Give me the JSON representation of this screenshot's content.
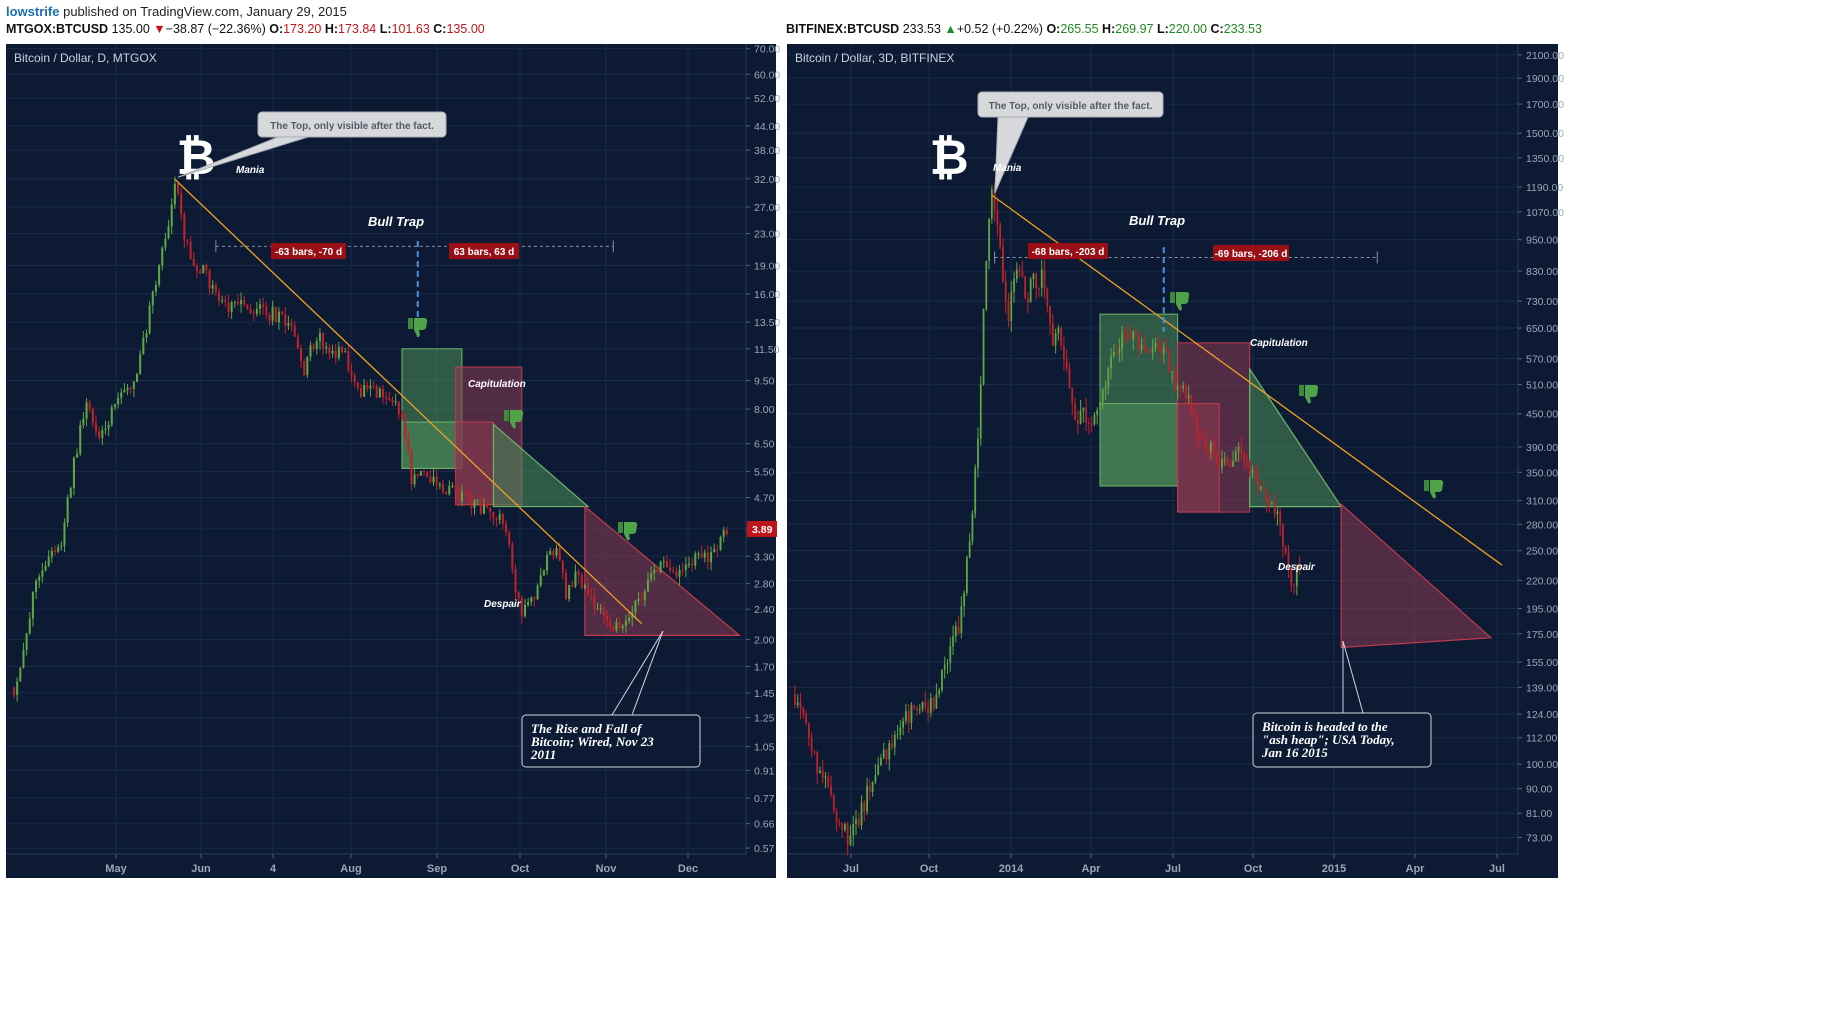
{
  "header": {
    "user": "lowstrife",
    "published_text": "published on TradingView.com, January 29, 2015"
  },
  "quotes": [
    {
      "symbol": "MTGOX:BTCUSD",
      "last": "135.00",
      "arrow": "▼",
      "change": "−38.87 (−22.36%)",
      "open_label": "O:",
      "open": "173.20",
      "high_label": "H:",
      "high": "173.84",
      "low_label": "L:",
      "low": "101.63",
      "close_label": "C:",
      "close": "135.00",
      "direction": "down"
    },
    {
      "symbol": "BITFINEX:BTCUSD",
      "last": "233.53",
      "arrow": "▲",
      "change": "+0.52 (+0.22%)",
      "open_label": "O:",
      "open": "265.55",
      "high_label": "H:",
      "high": "269.97",
      "low_label": "L:",
      "low": "220.00",
      "close_label": "C:",
      "close": "233.53",
      "direction": "up"
    }
  ],
  "colors": {
    "chart_bg": "#0c1a33",
    "grid": "#1a2b48",
    "up_candle": "#5fa645",
    "down_candle": "#c0222a",
    "trendline": "#f0a020",
    "green_zone": "#4f8f59",
    "red_zone": "#8c3a52",
    "label_red": "#9a0f16",
    "axis_text": "#9aa7b8",
    "callout_bg": "#d6d8dc"
  },
  "chart_data": [
    {
      "type": "candlestick",
      "title": "Bitcoin / Dollar, D, MTGOX",
      "x_ticks": [
        "May",
        "Jun",
        "4",
        "Aug",
        "Sep",
        "Oct",
        "Nov",
        "Dec"
      ],
      "y_scale": "log",
      "y_ticks": [
        "70.00",
        "60.00",
        "52.00",
        "44.00",
        "38.00",
        "32.00",
        "27.00",
        "23.00",
        "19.00",
        "16.00",
        "13.50",
        "11.50",
        "9.50",
        "8.00",
        "6.50",
        "5.50",
        "4.70",
        "3.89",
        "3.30",
        "2.80",
        "2.40",
        "2.00",
        "1.70",
        "1.45",
        "1.25",
        "1.05",
        "0.91",
        "0.77",
        "0.66",
        "0.57"
      ],
      "ylim": [
        0.55,
        72
      ],
      "last_price": "3.89",
      "price_path": [
        [
          0,
          1.5
        ],
        [
          3,
          1.8
        ],
        [
          7,
          2.9
        ],
        [
          11,
          3.3
        ],
        [
          15,
          3.6
        ],
        [
          19,
          5.8
        ],
        [
          23,
          8.5
        ],
        [
          27,
          6.5
        ],
        [
          31,
          7.8
        ],
        [
          35,
          8.8
        ],
        [
          39,
          9.8
        ],
        [
          43,
          14.5
        ],
        [
          46,
          19.5
        ],
        [
          49,
          24
        ],
        [
          51,
          31.9
        ],
        [
          53,
          25
        ],
        [
          55,
          21
        ],
        [
          57,
          19
        ],
        [
          60,
          18.5
        ],
        [
          64,
          16
        ],
        [
          68,
          14.5
        ],
        [
          72,
          15
        ],
        [
          77,
          14.5
        ],
        [
          82,
          14.2
        ],
        [
          88,
          13
        ],
        [
          92,
          10.2
        ],
        [
          94,
          11.3
        ],
        [
          97,
          12.2
        ],
        [
          100,
          11.1
        ],
        [
          104,
          11.6
        ],
        [
          107,
          10
        ],
        [
          110,
          9
        ],
        [
          113,
          8.9
        ],
        [
          117,
          8.6
        ],
        [
          120,
          8.2
        ],
        [
          123,
          7.8
        ],
        [
          126,
          5.3
        ],
        [
          130,
          5.6
        ],
        [
          135,
          5.0
        ],
        [
          140,
          4.8
        ],
        [
          145,
          4.6
        ],
        [
          150,
          4.3
        ],
        [
          155,
          4.2
        ],
        [
          157,
          3.4
        ],
        [
          159,
          2.7
        ],
        [
          161,
          2.3
        ],
        [
          164,
          2.5
        ],
        [
          168,
          3.1
        ],
        [
          172,
          3.5
        ],
        [
          175,
          2.6
        ],
        [
          178,
          2.9
        ],
        [
          181,
          2.8
        ],
        [
          184,
          2.5
        ],
        [
          187,
          2.4
        ],
        [
          190,
          2.1
        ],
        [
          193,
          2.25
        ],
        [
          196,
          2.4
        ],
        [
          199,
          2.6
        ],
        [
          202,
          2.9
        ],
        [
          206,
          3.2
        ],
        [
          210,
          3.0
        ],
        [
          214,
          3.15
        ],
        [
          218,
          3.3
        ],
        [
          222,
          3.35
        ],
        [
          226,
          3.9
        ]
      ],
      "series": [
        {
          "name": "Trendline",
          "points": [
            [
              51,
              31.9
            ],
            [
              199,
              2.2
            ]
          ]
        }
      ],
      "annotations": {
        "logo": "₿",
        "top_callout": "The Top, only visible after the fact.",
        "mania": "Mania",
        "bull_trap": "Bull Trap",
        "capitulation": "Capitulation",
        "despair": "Despair",
        "range_left": "-63 bars, -70 d",
        "range_right": "63 bars, 63 d",
        "news": "The Rise and Fall of Bitcoin; Wired, Nov 23 2011"
      }
    },
    {
      "type": "candlestick",
      "title": "Bitcoin / Dollar, 3D, BITFINEX",
      "x_ticks": [
        "Jul",
        "Oct",
        "2014",
        "Apr",
        "Jul",
        "Oct",
        "2015",
        "Apr",
        "Jul"
      ],
      "y_scale": "log",
      "y_ticks": [
        "2100.00",
        "1900.00",
        "1700.00",
        "1500.00",
        "1350.00",
        "1190.00",
        "1070.00",
        "950.00",
        "830.00",
        "730.00",
        "650.00",
        "570.00",
        "510.00",
        "450.00",
        "390.00",
        "350.00",
        "310.00",
        "280.00",
        "250.00",
        "220.00",
        "195.00",
        "175.00",
        "155.00",
        "139.00",
        "124.00",
        "112.00",
        "100.00",
        "90.00",
        "81.00",
        "73.00"
      ],
      "ylim": [
        68,
        2200
      ],
      "price_path": [
        [
          0,
          135
        ],
        [
          4,
          118
        ],
        [
          8,
          100
        ],
        [
          12,
          92
        ],
        [
          16,
          78
        ],
        [
          20,
          72
        ],
        [
          24,
          82
        ],
        [
          28,
          95
        ],
        [
          32,
          102
        ],
        [
          36,
          110
        ],
        [
          40,
          122
        ],
        [
          44,
          125
        ],
        [
          48,
          126
        ],
        [
          52,
          140
        ],
        [
          56,
          160
        ],
        [
          60,
          190
        ],
        [
          63,
          260
        ],
        [
          66,
          400
        ],
        [
          68,
          700
        ],
        [
          70,
          1000
        ],
        [
          71,
          1150
        ],
        [
          73,
          980
        ],
        [
          75,
          800
        ],
        [
          77,
          680
        ],
        [
          79,
          820
        ],
        [
          81,
          850
        ],
        [
          83,
          720
        ],
        [
          85,
          800
        ],
        [
          87,
          780
        ],
        [
          89,
          820
        ],
        [
          91,
          740
        ],
        [
          93,
          610
        ],
        [
          95,
          650
        ],
        [
          97,
          580
        ],
        [
          99,
          500
        ],
        [
          101,
          440
        ],
        [
          103,
          460
        ],
        [
          105,
          445
        ],
        [
          107,
          450
        ],
        [
          110,
          490
        ],
        [
          113,
          540
        ],
        [
          116,
          600
        ],
        [
          119,
          640
        ],
        [
          122,
          620
        ],
        [
          125,
          600
        ],
        [
          128,
          580
        ],
        [
          131,
          590
        ],
        [
          134,
          570
        ],
        [
          137,
          520
        ],
        [
          140,
          490
        ],
        [
          143,
          470
        ],
        [
          146,
          400
        ],
        [
          149,
          390
        ],
        [
          152,
          370
        ],
        [
          155,
          360
        ],
        [
          158,
          380
        ],
        [
          161,
          370
        ],
        [
          164,
          360
        ],
        [
          167,
          340
        ],
        [
          170,
          320
        ],
        [
          173,
          300
        ],
        [
          176,
          260
        ],
        [
          178,
          230
        ],
        [
          180,
          220
        ],
        [
          182,
          238
        ]
      ],
      "series": [
        {
          "name": "Trendline",
          "points": [
            [
              71,
              1150
            ],
            [
              255,
              235
            ]
          ]
        }
      ],
      "annotations": {
        "logo": "₿",
        "top_callout": "The Top, only visible after the fact.",
        "mania": "Mania",
        "bull_trap": "Bull Trap",
        "capitulation": "Capitulation",
        "despair": "Despair",
        "range_left": "-68 bars, -203 d",
        "range_right": "-69 bars, -206 d",
        "news": "Bitcoin is headed to the \"ash heap\"; USA Today, Jan 16 2015"
      }
    }
  ]
}
